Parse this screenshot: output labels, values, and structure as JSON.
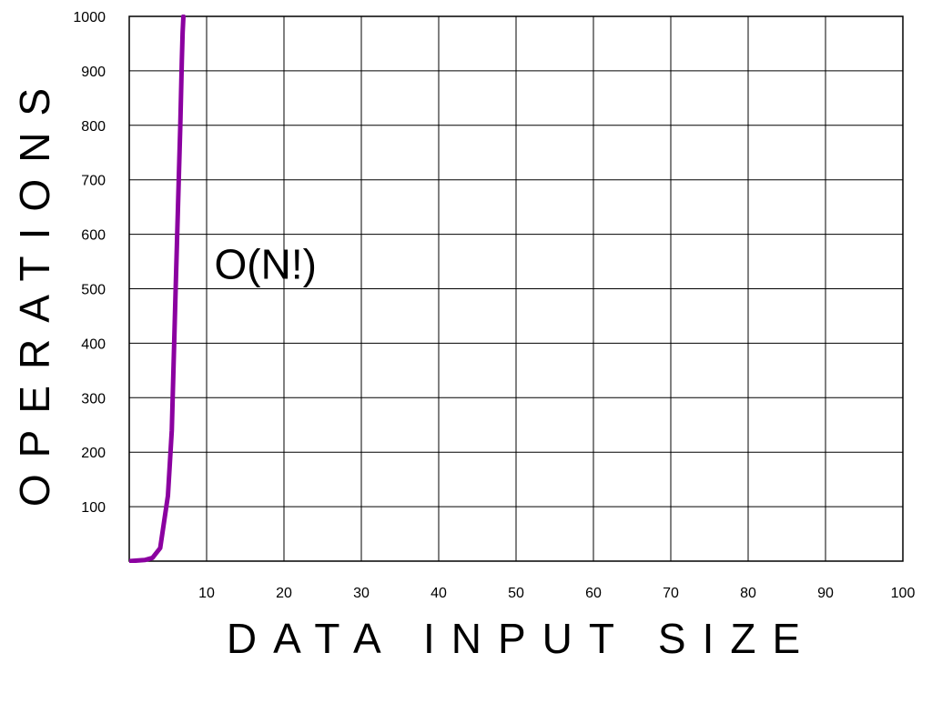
{
  "chart_data": {
    "type": "line",
    "title": "",
    "xlabel": "DATA INPUT SIZE",
    "ylabel": "OPERATIONS",
    "xlim": [
      0,
      100
    ],
    "ylim": [
      0,
      1000
    ],
    "x_ticks": [
      10,
      20,
      30,
      40,
      50,
      60,
      70,
      80,
      90,
      100
    ],
    "y_ticks": [
      100,
      200,
      300,
      400,
      500,
      600,
      700,
      800,
      900,
      1000
    ],
    "grid": true,
    "annotations": [
      {
        "text": "O(N!)",
        "x": 11,
        "y": 545
      }
    ],
    "series": [
      {
        "color": "#8B00A0",
        "x": [
          0,
          1,
          2,
          3,
          4,
          5,
          5.5,
          6,
          6.3,
          6.5,
          6.6,
          6.7,
          6.8,
          6.9,
          7.0
        ],
        "y": [
          0,
          1,
          2,
          6,
          24,
          120,
          240,
          500,
          650,
          750,
          800,
          860,
          920,
          970,
          1000
        ]
      }
    ]
  }
}
